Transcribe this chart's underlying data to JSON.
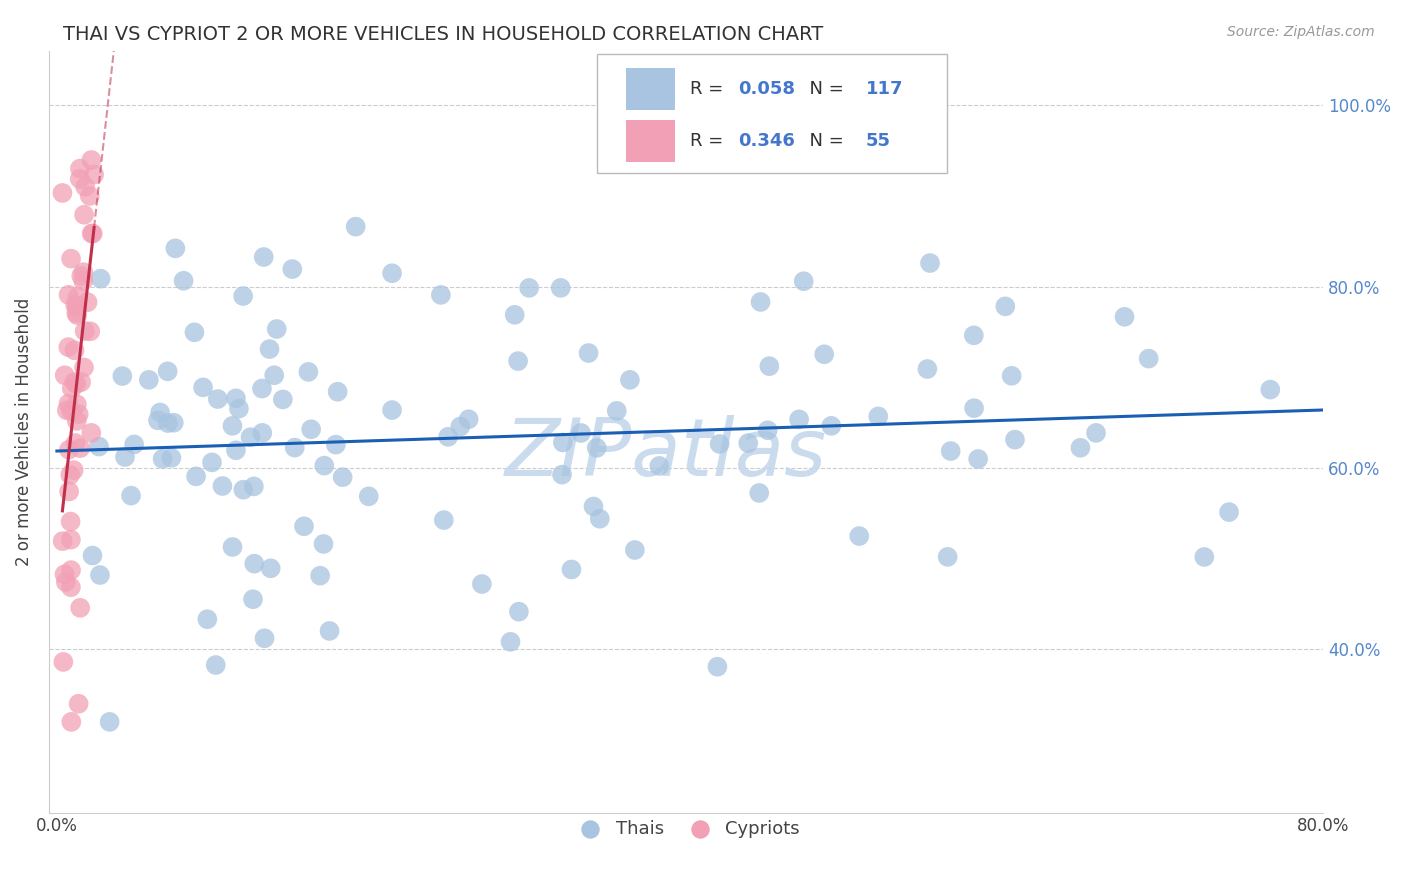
{
  "title": "THAI VS CYPRIOT 2 OR MORE VEHICLES IN HOUSEHOLD CORRELATION CHART",
  "source": "Source: ZipAtlas.com",
  "ylabel": "2 or more Vehicles in Household",
  "xlim": [
    -0.005,
    0.8
  ],
  "ylim": [
    0.22,
    1.06
  ],
  "xtick_positions": [
    0.0,
    0.1,
    0.2,
    0.3,
    0.4,
    0.5,
    0.6,
    0.7,
    0.8
  ],
  "xticklabels": [
    "0.0%",
    "",
    "",
    "",
    "",
    "",
    "",
    "",
    "80.0%"
  ],
  "ytick_positions": [
    0.4,
    0.6,
    0.8,
    1.0
  ],
  "yticklabels": [
    "40.0%",
    "60.0%",
    "80.0%",
    "100.0%"
  ],
  "thai_R": 0.058,
  "thai_N": 117,
  "cypriot_R": 0.346,
  "cypriot_N": 55,
  "thai_color": "#a8c4e0",
  "cypriot_color": "#f2a0b5",
  "thai_line_color": "#1a5fb4",
  "cypriot_line_color": "#c0304a",
  "watermark": "ZIPatlas",
  "watermark_color": "#c5d8ec",
  "title_fontsize": 14,
  "axis_label_fontsize": 12,
  "tick_fontsize": 12,
  "legend_fontsize": 13
}
